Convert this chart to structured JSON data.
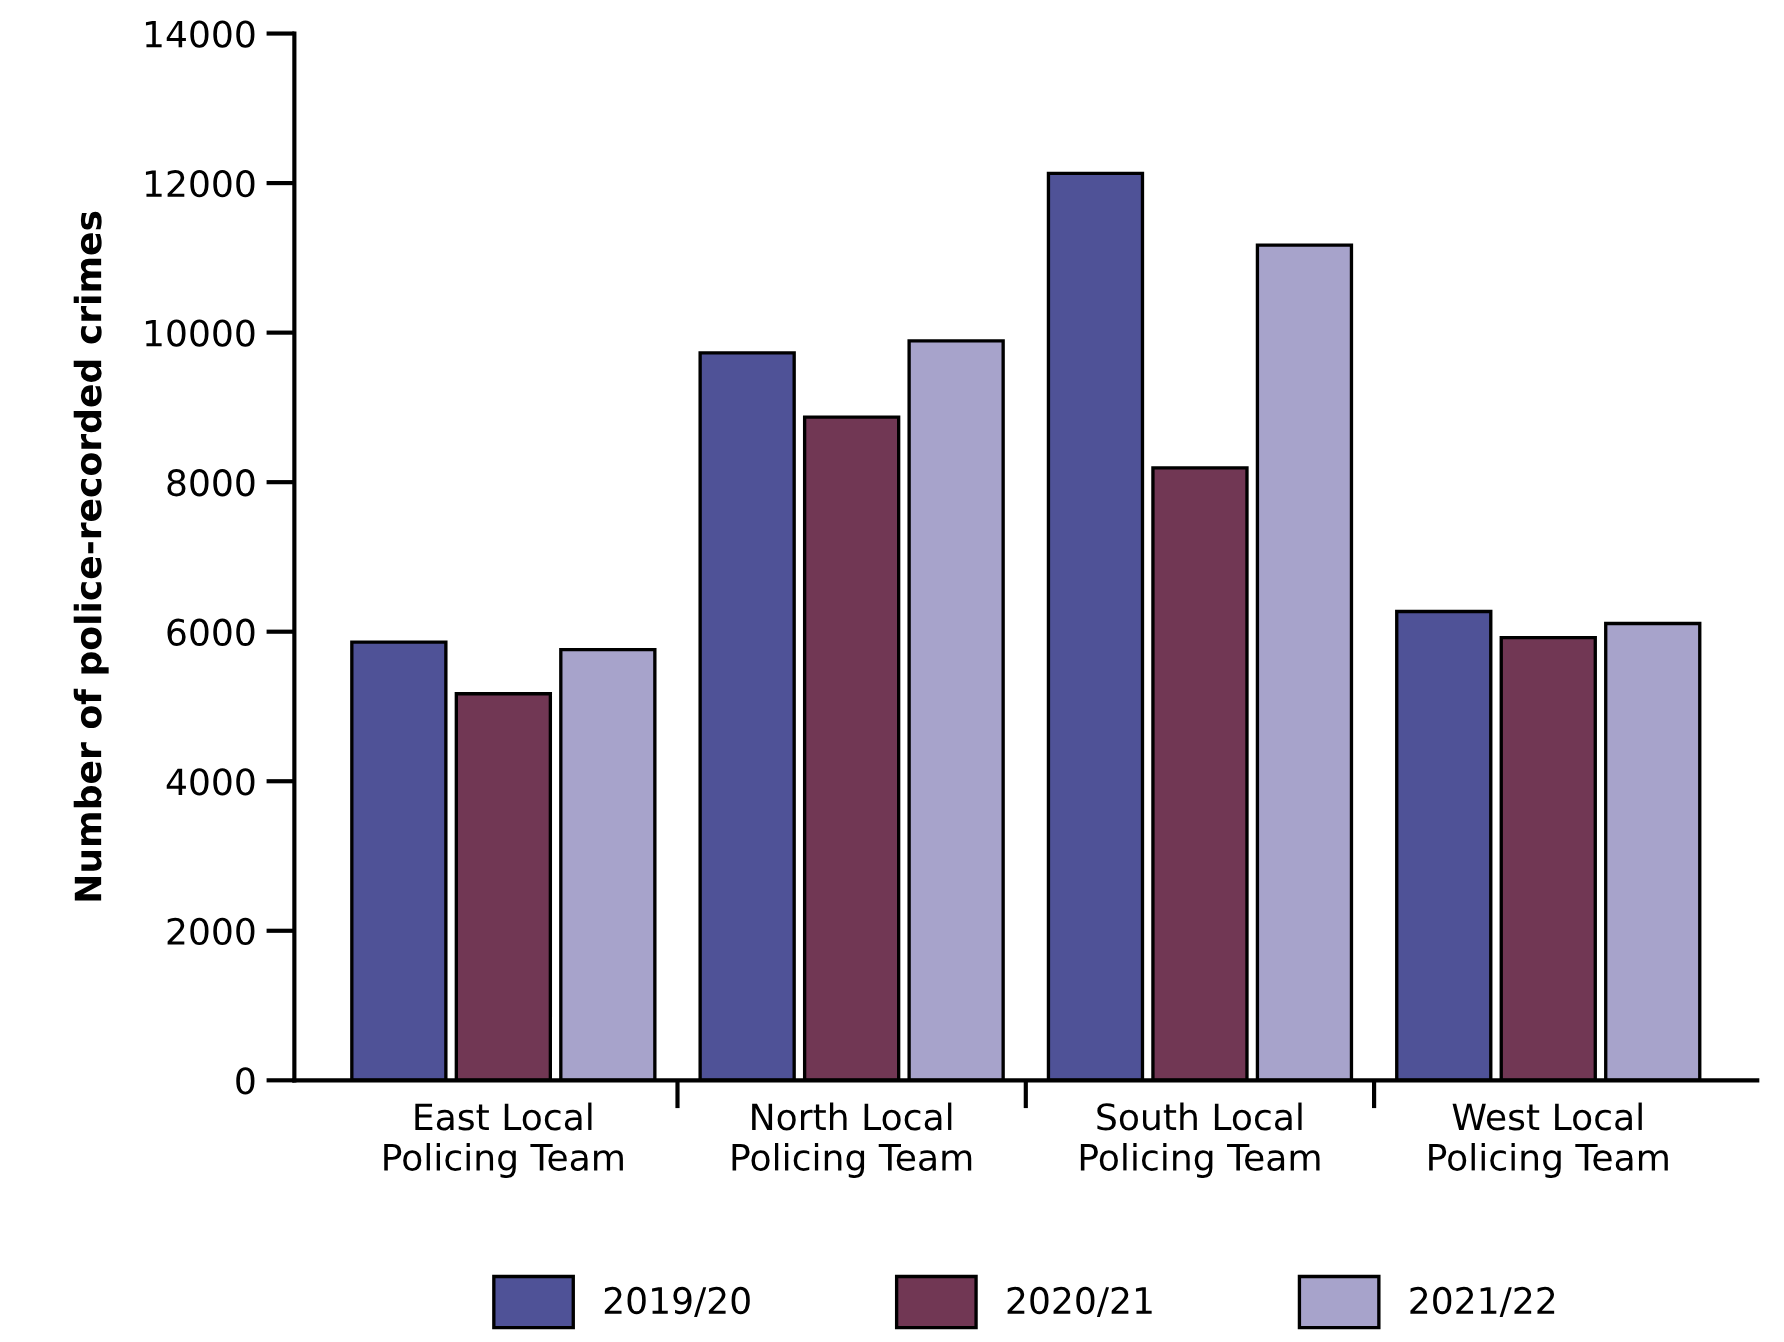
{
  "chart_data": {
    "type": "bar",
    "ylabel": "Number of police-recorded crimes",
    "categories": [
      "East Local\nPolicing Team",
      "North Local\nPolicing Team",
      "South Local\nPolicing Team",
      "West Local\nPolicing Team"
    ],
    "series": [
      {
        "name": "2019/20",
        "color": "#4f5297",
        "values": [
          5860,
          9730,
          12130,
          6270
        ]
      },
      {
        "name": "2020/21",
        "color": "#713754",
        "values": [
          5170,
          8870,
          8190,
          5920
        ]
      },
      {
        "name": "2021/22",
        "color": "#a7a3cb",
        "values": [
          5760,
          9890,
          11170,
          6110
        ]
      }
    ],
    "ylim": [
      0,
      14000
    ],
    "yticks": [
      0,
      2000,
      4000,
      6000,
      8000,
      10000,
      12000,
      14000
    ],
    "grid": false,
    "legend": "bottom"
  }
}
